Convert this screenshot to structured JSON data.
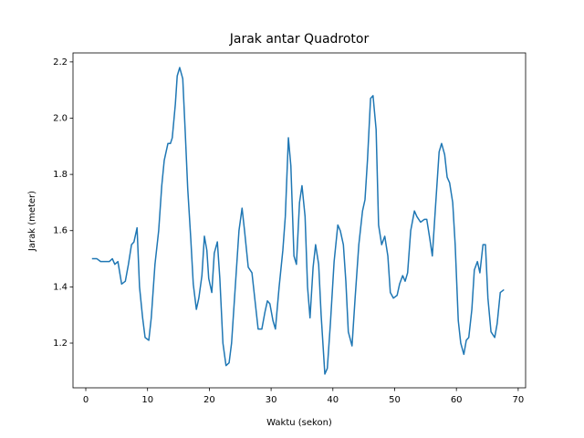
{
  "chart_data": {
    "type": "line",
    "title": "Jarak antar Quadrotor",
    "xlabel": "Waktu (sekon)",
    "ylabel": "Jarak (meter)",
    "x": [
      1.0,
      1.8,
      2.4,
      3.8,
      4.3,
      4.7,
      5.2,
      5.8,
      6.4,
      6.9,
      7.4,
      7.8,
      8.3,
      8.7,
      9.2,
      9.6,
      10.2,
      10.6,
      11.2,
      11.8,
      12.3,
      12.7,
      13.3,
      13.7,
      14.0,
      14.5,
      14.8,
      15.2,
      15.7,
      16.1,
      16.5,
      17.0,
      17.4,
      17.9,
      18.3,
      18.8,
      19.2,
      19.6,
      19.9,
      20.4,
      20.8,
      21.3,
      21.7,
      22.2,
      22.7,
      23.2,
      23.6,
      24.2,
      24.8,
      25.3,
      25.7,
      26.3,
      26.9,
      27.5,
      27.9,
      28.5,
      29.0,
      29.4,
      29.8,
      30.3,
      30.7,
      31.3,
      31.9,
      32.3,
      32.8,
      33.2,
      33.7,
      34.1,
      34.6,
      35.0,
      35.5,
      35.9,
      36.3,
      36.8,
      37.2,
      37.7,
      38.1,
      38.7,
      39.1,
      39.6,
      40.2,
      40.8,
      41.2,
      41.7,
      42.1,
      42.5,
      43.1,
      43.6,
      44.2,
      44.8,
      45.2,
      45.6,
      46.1,
      46.5,
      47.0,
      47.4,
      47.9,
      48.4,
      48.9,
      49.3,
      49.8,
      50.4,
      50.8,
      51.3,
      51.7,
      52.1,
      52.6,
      53.2,
      53.6,
      54.2,
      54.8,
      55.2,
      55.7,
      56.1,
      56.6,
      57.2,
      57.6,
      58.1,
      58.5,
      58.9,
      59.4,
      59.8,
      60.3,
      60.7,
      61.2,
      61.6,
      62.0,
      62.5,
      62.9,
      63.4,
      63.8,
      64.3,
      64.7,
      65.1,
      65.6,
      66.2,
      66.6,
      67.1,
      67.7
    ],
    "series": [
      {
        "color": "#1f77b4",
        "values": [
          1.5,
          1.5,
          1.49,
          1.49,
          1.5,
          1.48,
          1.49,
          1.41,
          1.42,
          1.48,
          1.55,
          1.56,
          1.61,
          1.4,
          1.29,
          1.22,
          1.21,
          1.29,
          1.48,
          1.6,
          1.76,
          1.85,
          1.91,
          1.91,
          1.93,
          2.05,
          2.15,
          2.18,
          2.14,
          1.95,
          1.75,
          1.57,
          1.41,
          1.32,
          1.36,
          1.44,
          1.58,
          1.53,
          1.43,
          1.38,
          1.52,
          1.56,
          1.43,
          1.2,
          1.12,
          1.13,
          1.2,
          1.4,
          1.6,
          1.68,
          1.6,
          1.47,
          1.45,
          1.33,
          1.25,
          1.25,
          1.31,
          1.35,
          1.34,
          1.28,
          1.25,
          1.4,
          1.53,
          1.65,
          1.93,
          1.83,
          1.51,
          1.48,
          1.7,
          1.76,
          1.65,
          1.4,
          1.29,
          1.47,
          1.55,
          1.48,
          1.3,
          1.09,
          1.11,
          1.27,
          1.49,
          1.62,
          1.6,
          1.55,
          1.42,
          1.24,
          1.19,
          1.36,
          1.55,
          1.67,
          1.71,
          1.85,
          2.07,
          2.08,
          1.96,
          1.62,
          1.55,
          1.58,
          1.51,
          1.38,
          1.36,
          1.37,
          1.41,
          1.44,
          1.42,
          1.45,
          1.6,
          1.67,
          1.65,
          1.63,
          1.64,
          1.64,
          1.57,
          1.51,
          1.68,
          1.88,
          1.91,
          1.87,
          1.79,
          1.77,
          1.7,
          1.55,
          1.28,
          1.2,
          1.16,
          1.21,
          1.22,
          1.32,
          1.46,
          1.49,
          1.45,
          1.55,
          1.55,
          1.36,
          1.24,
          1.22,
          1.27,
          1.38,
          1.39
        ]
      }
    ],
    "xlim": [
      -2.07,
      71.2
    ],
    "ylim": [
      1.041,
      2.232
    ],
    "xticks": [
      0,
      10,
      20,
      30,
      40,
      50,
      60,
      70
    ],
    "yticks": [
      1.2,
      1.4,
      1.6,
      1.8,
      {
        "value": 2,
        "label": "2.0"
      },
      2.2
    ]
  }
}
